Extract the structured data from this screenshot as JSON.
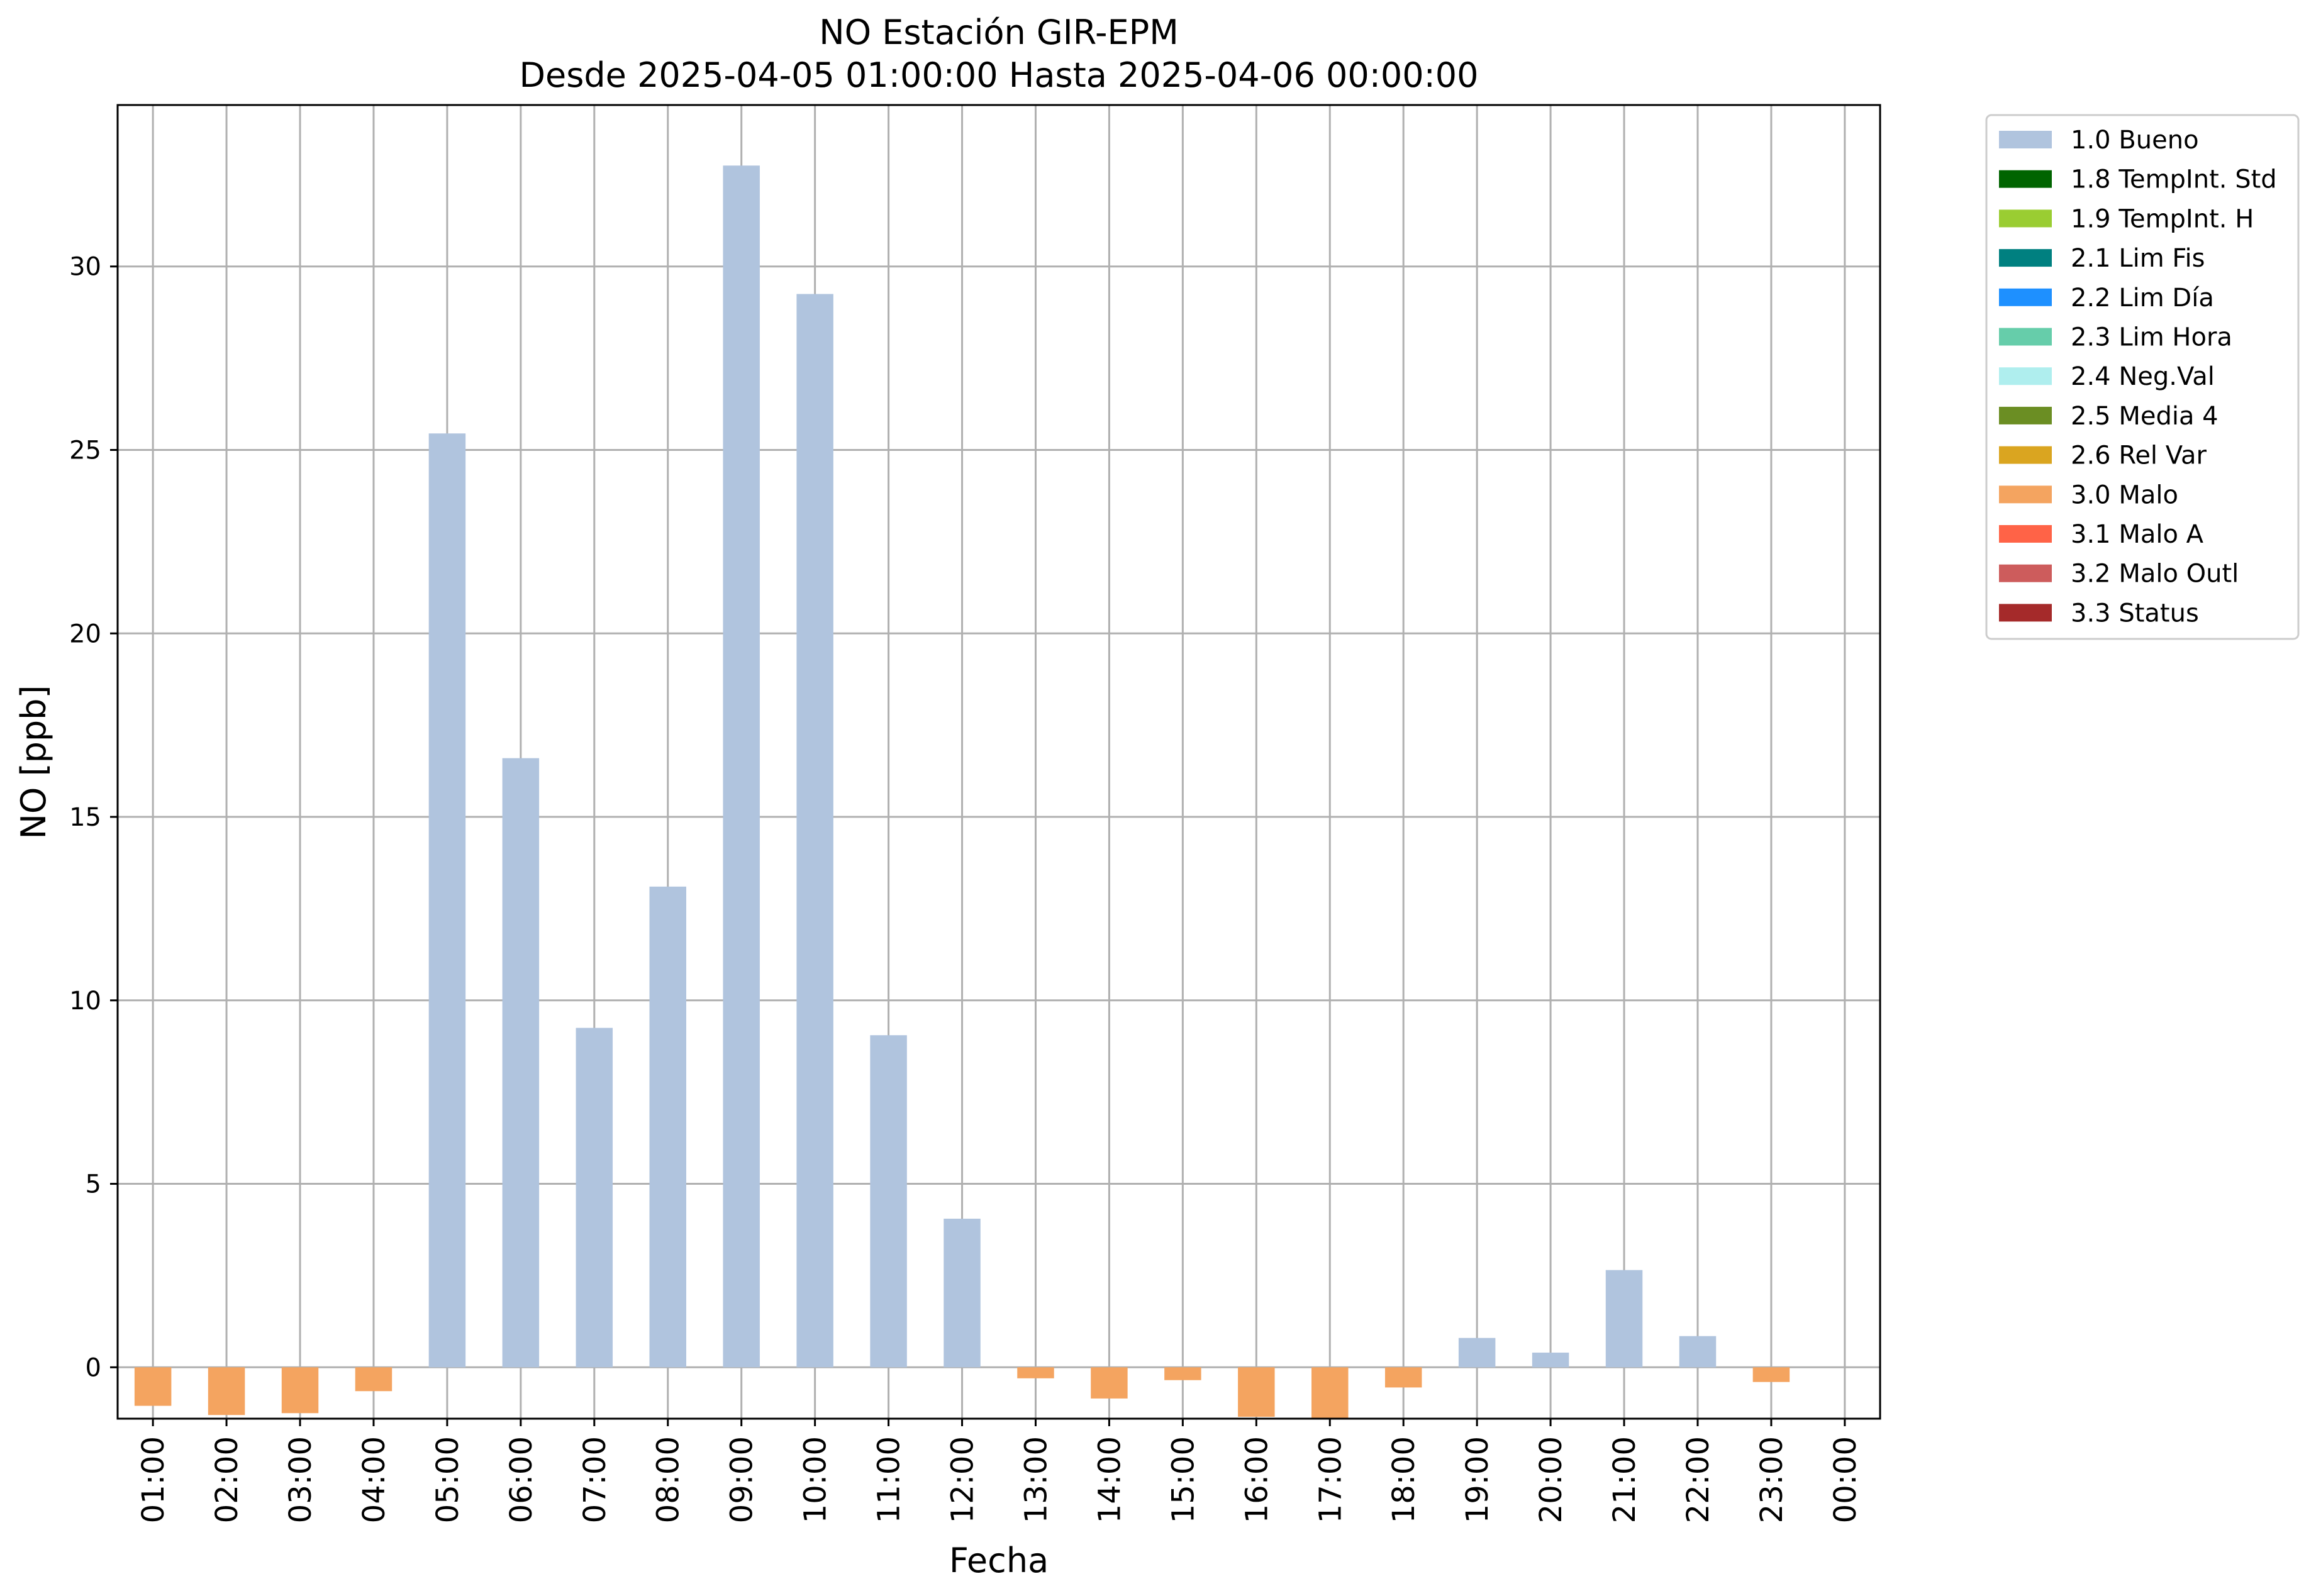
{
  "chart_data": {
    "type": "bar",
    "title": "NO Estación GIR-EPM",
    "subtitle": "Desde 2025-04-05 01:00:00 Hasta 2025-04-06 00:00:00",
    "xlabel": "Fecha",
    "ylabel": "NO [ppb]",
    "ylim": [
      -1.4,
      34.4
    ],
    "yticks": [
      0,
      5,
      10,
      15,
      20,
      25,
      30
    ],
    "grid": true,
    "legend_position": "outside-right",
    "categories": [
      "01:00",
      "02:00",
      "03:00",
      "04:00",
      "05:00",
      "06:00",
      "07:00",
      "08:00",
      "09:00",
      "10:00",
      "11:00",
      "12:00",
      "13:00",
      "14:00",
      "15:00",
      "16:00",
      "17:00",
      "18:00",
      "19:00",
      "20:00",
      "21:00",
      "22:00",
      "23:00",
      "00:00"
    ],
    "values": [
      -1.05,
      -1.3,
      -1.25,
      -0.65,
      25.45,
      16.6,
      9.25,
      13.1,
      32.75,
      29.25,
      9.05,
      4.05,
      -0.3,
      -0.85,
      -0.35,
      -1.35,
      -1.4,
      -0.55,
      0.8,
      0.4,
      2.65,
      0.85,
      -0.4,
      null
    ],
    "flags": [
      "3.0 Malo",
      "3.0 Malo",
      "3.0 Malo",
      "3.0 Malo",
      "1.0 Bueno",
      "1.0 Bueno",
      "1.0 Bueno",
      "1.0 Bueno",
      "1.0 Bueno",
      "1.0 Bueno",
      "1.0 Bueno",
      "1.0 Bueno",
      "3.0 Malo",
      "3.0 Malo",
      "3.0 Malo",
      "3.0 Malo",
      "3.0 Malo",
      "3.0 Malo",
      "1.0 Bueno",
      "1.0 Bueno",
      "1.0 Bueno",
      "1.0 Bueno",
      "3.0 Malo",
      null
    ],
    "legend": [
      {
        "label": "1.0 Bueno",
        "color": "#b0c4de"
      },
      {
        "label": "1.8 TempInt. Std",
        "color": "#006400"
      },
      {
        "label": "1.9 TempInt. H",
        "color": "#9acd32"
      },
      {
        "label": "2.1 Lim Fis",
        "color": "#008080"
      },
      {
        "label": "2.2 Lim Día",
        "color": "#1e90ff"
      },
      {
        "label": "2.3 Lim Hora",
        "color": "#66cdaa"
      },
      {
        "label": "2.4 Neg.Val",
        "color": "#afeeee"
      },
      {
        "label": "2.5 Media 4",
        "color": "#6b8e23"
      },
      {
        "label": "2.6 Rel Var",
        "color": "#daa520"
      },
      {
        "label": "3.0 Malo",
        "color": "#f4a460"
      },
      {
        "label": "3.1 Malo A",
        "color": "#ff6347"
      },
      {
        "label": "3.2 Malo Outl",
        "color": "#cd5c5c"
      },
      {
        "label": "3.3 Status",
        "color": "#a52a2a"
      }
    ]
  }
}
